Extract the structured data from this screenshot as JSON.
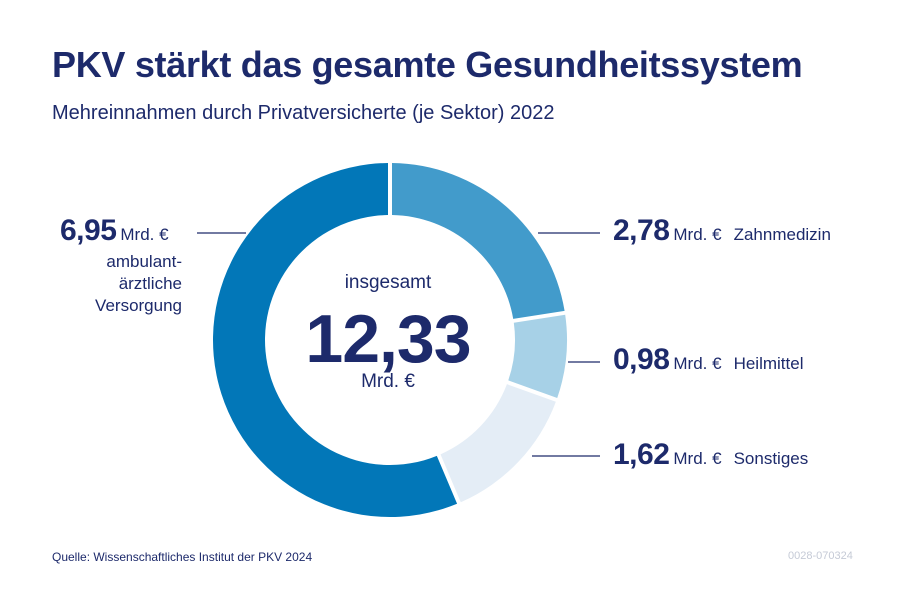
{
  "header": {
    "title": "PKV stärkt das gesamte Gesundheitssystem",
    "subtitle": "Mehreinnahmen durch Privatversicherte (je Sektor) 2022"
  },
  "center": {
    "caption": "insgesamt",
    "total": "12,33",
    "unit": "Mrd. €"
  },
  "chart_data": {
    "type": "pie",
    "variant": "donut",
    "title": "PKV stärkt das gesamte Gesundheitssystem",
    "subtitle": "Mehreinnahmen durch Privatversicherte (je Sektor) 2022",
    "unit": "Mrd. €",
    "total": 12.33,
    "slices": [
      {
        "label": "Zahnmedizin",
        "value": 2.78,
        "display": "2,78",
        "color": "#429bcb"
      },
      {
        "label": "Heilmittel",
        "value": 0.98,
        "display": "0,98",
        "color": "#a7d1e7"
      },
      {
        "label": "Sonstiges",
        "value": 1.62,
        "display": "1,62",
        "color": "#e4edf6"
      },
      {
        "label": "ambulant-ärztliche Versorgung",
        "value": 6.95,
        "display": "6,95",
        "color": "#0277b8"
      }
    ]
  },
  "labels": {
    "left_line1": "ambulant-",
    "left_line2": "ärztliche",
    "left_line3": "Versorgung"
  },
  "footer": {
    "source": "Quelle: Wissenschaftliches Institut der PKV 2024",
    "code": "0028-070324"
  },
  "colors": {
    "text": "#1d2a6b",
    "leader": "#1d2a6b"
  }
}
